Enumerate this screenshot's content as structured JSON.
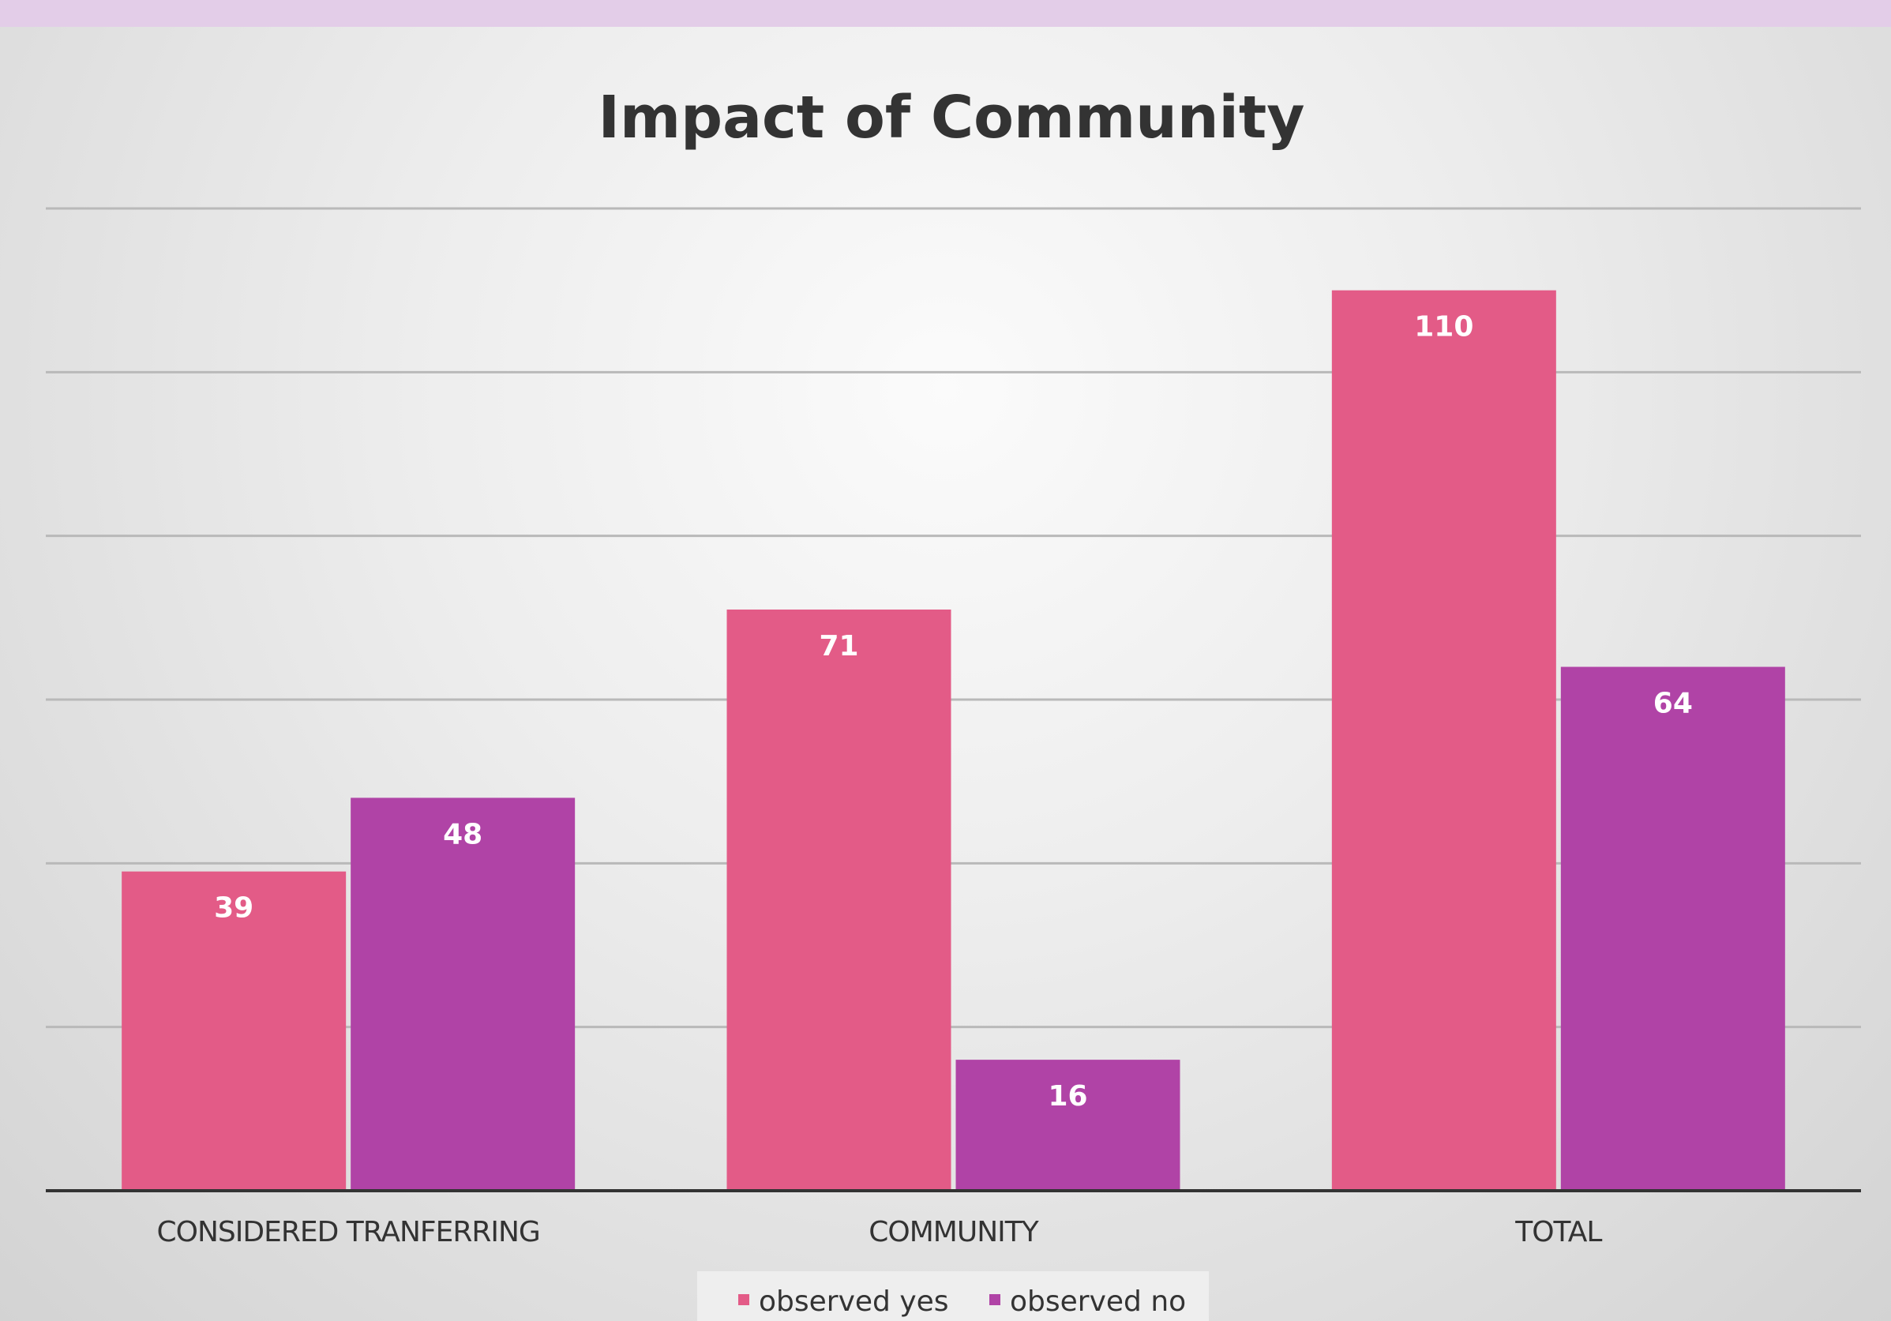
{
  "chart_data": {
    "type": "bar",
    "title": "Impact of Community",
    "categories": [
      "CONSIDERED TRANFERRING",
      "COMMUNITY",
      "TOTAL"
    ],
    "series": [
      {
        "name": "observed yes",
        "values": [
          39,
          71,
          110
        ],
        "color": "#e35b87"
      },
      {
        "name": "observed no",
        "values": [
          48,
          16,
          64
        ],
        "color": "#b043a6"
      }
    ],
    "ylim": [
      0,
      120
    ],
    "grid": true,
    "legend": "bottom-center",
    "xlabel": "",
    "ylabel": ""
  }
}
